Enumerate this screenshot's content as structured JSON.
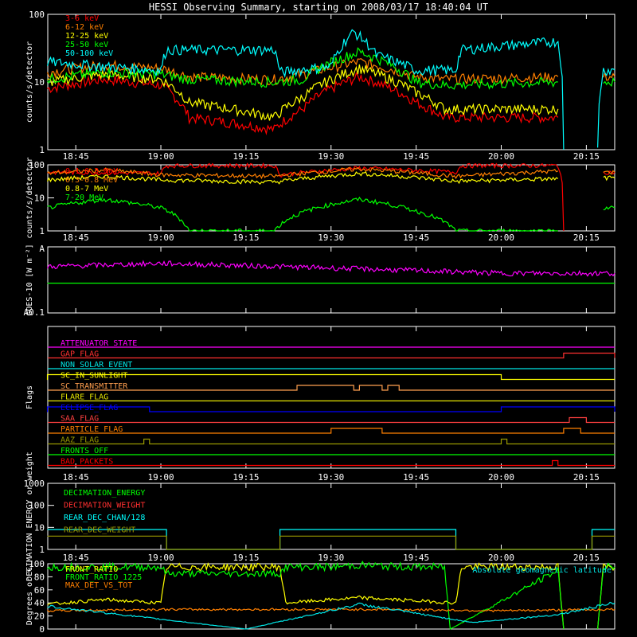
{
  "title": "HESSI Observing Summary, starting on 2008/03/17 18:40:04 UT",
  "time_axis": {
    "start": "18:40:04",
    "end": "20:20",
    "tick_labels": [
      "18:45",
      "19:00",
      "19:15",
      "19:30",
      "19:45",
      "20:00",
      "20:15"
    ]
  },
  "colors": {
    "red": "#ff0000",
    "orange": "#ff7f00",
    "yellow": "#ffff00",
    "green": "#00ff00",
    "cyan": "#00ffff",
    "magenta": "#ff00ff",
    "blue": "#0000ff",
    "olive": "#999900",
    "white": "#ffffff"
  },
  "chart_data": [
    {
      "type": "line",
      "panel": "countrate-low",
      "ylabel": "counts/s/detector",
      "ylim": [
        1,
        100
      ],
      "log_y": true,
      "y_tick_labels": [
        "1",
        "10",
        "100"
      ],
      "legend_placement": "top-left",
      "series": [
        {
          "name": "3-6 keV",
          "color": "#ff0000",
          "segments": [
            {
              "t": [
                "18:40",
                "18:50",
                "19:00",
                "19:05",
                "19:20",
                "19:25",
                "19:35",
                "19:45",
                "19:50",
                "20:10"
              ],
              "v": [
                8,
                11,
                9,
                3,
                2,
                4,
                12,
                5,
                3,
                3
              ]
            }
          ]
        },
        {
          "name": "6-12 keV",
          "color": "#ff7f00",
          "segments": [
            {
              "t": [
                "18:40",
                "18:50",
                "19:00",
                "19:05",
                "19:20",
                "19:25",
                "19:35",
                "19:45",
                "19:50",
                "20:10"
              ],
              "v": [
                14,
                18,
                16,
                12,
                11,
                13,
                20,
                12,
                11,
                12
              ],
              "end": "20:10"
            },
            {
              "t": [
                "20:18",
                "20:20"
              ],
              "v": [
                12,
                12
              ]
            }
          ]
        },
        {
          "name": "12-25 keV",
          "color": "#ffff00",
          "segments": [
            {
              "t": [
                "18:40",
                "18:50",
                "19:00",
                "19:05",
                "19:20",
                "19:25",
                "19:35",
                "19:45",
                "19:50",
                "20:10"
              ],
              "v": [
                10,
                13,
                11,
                5,
                3,
                6,
                16,
                7,
                4,
                4
              ]
            }
          ]
        },
        {
          "name": "25-50 keV",
          "color": "#00ff00",
          "segments": [
            {
              "t": [
                "18:40",
                "18:50",
                "19:00",
                "19:05",
                "19:20",
                "19:25",
                "19:35",
                "19:45",
                "19:50",
                "20:10"
              ],
              "v": [
                11,
                14,
                13,
                11,
                10,
                11,
                28,
                10,
                9,
                10
              ]
            },
            {
              "t": [
                "20:18",
                "20:20"
              ],
              "v": [
                10,
                10
              ]
            }
          ]
        },
        {
          "name": "50-100 keV",
          "color": "#00ffff",
          "segments": [
            {
              "t": [
                "18:40",
                "18:50",
                "19:00",
                "19:01",
                "19:20",
                "19:21",
                "19:30",
                "19:34",
                "19:38",
                "19:45",
                "19:52",
                "19:53",
                "20:10",
                "20:11"
              ],
              "v": [
                20,
                17,
                15,
                30,
                30,
                14,
                17,
                55,
                25,
                15,
                15,
                30,
                40,
                1
              ]
            },
            {
              "t": [
                "20:17",
                "20:18",
                "20:20"
              ],
              "v": [
                1,
                15,
                15
              ]
            }
          ]
        }
      ]
    },
    {
      "type": "line",
      "panel": "countrate-high",
      "ylabel": "counts/s/detector",
      "ylim": [
        1,
        100
      ],
      "log_y": true,
      "y_tick_labels": [
        "1",
        "10",
        "100"
      ],
      "legend_placement": "top-left",
      "series": [
        {
          "name": "0.1-0.3 MeV",
          "color": "#ff0000",
          "segments": [
            {
              "t": [
                "18:40",
                "19:00",
                "19:01",
                "19:20",
                "19:21",
                "19:35",
                "19:52",
                "19:53",
                "20:10",
                "20:11"
              ],
              "v": [
                60,
                55,
                95,
                95,
                50,
                80,
                60,
                95,
                95,
                1
              ]
            },
            {
              "t": [
                "20:18",
                "20:20"
              ],
              "v": [
                60,
                60
              ]
            }
          ]
        },
        {
          "name": "0.3-0.8 MeV",
          "color": "#ff7f00",
          "segments": [
            {
              "t": [
                "18:40",
                "18:50",
                "19:00",
                "19:20",
                "19:35",
                "19:52",
                "20:10"
              ],
              "v": [
                55,
                70,
                50,
                45,
                75,
                45,
                65
              ]
            },
            {
              "t": [
                "20:18",
                "20:20"
              ],
              "v": [
                60,
                60
              ]
            }
          ]
        },
        {
          "name": "0.8-7 MeV",
          "color": "#ffff00",
          "segments": [
            {
              "t": [
                "18:40",
                "18:50",
                "19:00",
                "19:20",
                "19:35",
                "19:52",
                "20:10"
              ],
              "v": [
                35,
                45,
                35,
                30,
                55,
                32,
                38
              ]
            },
            {
              "t": [
                "20:18",
                "20:20"
              ],
              "v": [
                40,
                40
              ]
            }
          ]
        },
        {
          "name": "7-20 MeV",
          "color": "#00ff00",
          "segments": [
            {
              "t": [
                "18:40",
                "18:50",
                "19:00",
                "19:05",
                "19:20",
                "19:35",
                "19:45",
                "19:52",
                "20:10"
              ],
              "v": [
                5,
                9,
                5,
                1,
                1,
                9,
                4,
                1,
                1
              ]
            },
            {
              "t": [
                "20:18",
                "20:20"
              ],
              "v": [
                5,
                5
              ]
            }
          ]
        }
      ]
    },
    {
      "type": "line",
      "panel": "goes",
      "ylabel": "GOES-10 [W m⁻²]",
      "log_y": true,
      "y_tick_labels": [
        "A",
        "A0.1"
      ],
      "series": [
        {
          "name": "",
          "color": "#ff00ff",
          "segments": [
            {
              "t": [
                "18:40",
                "19:00",
                "19:30",
                "20:00",
                "20:20"
              ],
              "v": [
                0.7,
                0.75,
                0.68,
                0.6,
                0.6
              ]
            }
          ]
        },
        {
          "name": "",
          "color": "#00ff00",
          "segments": [
            {
              "t": [
                "18:40",
                "20:20"
              ],
              "v": [
                0.45,
                0.45
              ]
            }
          ]
        }
      ]
    },
    {
      "type": "line",
      "panel": "flags",
      "ylabel": "Flags",
      "flags": [
        {
          "name": "ATTENUATOR_STATE",
          "color": "#ff00ff",
          "high": []
        },
        {
          "name": "GAP_FLAG",
          "color": "#ff3030",
          "high": [
            [
              "20:11",
              "20:20"
            ]
          ]
        },
        {
          "name": "NON_SOLAR_EVENT",
          "color": "#00e5e5",
          "high": []
        },
        {
          "name": "SC_IN_SUNLIGHT",
          "color": "#ffff00",
          "high": [
            [
              "18:40",
              "20:00"
            ]
          ]
        },
        {
          "name": "SC_TRANSMITTER",
          "color": "#ff9f4f",
          "high": [
            [
              "19:24",
              "19:34"
            ],
            [
              "19:35",
              "19:39"
            ],
            [
              "19:40",
              "19:42"
            ]
          ]
        },
        {
          "name": "FLARE_FLAG",
          "color": "#e5e500",
          "high": []
        },
        {
          "name": "ECLIPSE_FLAG",
          "color": "#0000ff",
          "high": [
            [
              "18:40",
              "18:58"
            ],
            [
              "20:00",
              "20:20"
            ]
          ]
        },
        {
          "name": "SAA_FLAG",
          "color": "#ff4040",
          "high": [
            [
              "20:12",
              "20:15"
            ]
          ]
        },
        {
          "name": "PARTICLE_FLAG",
          "color": "#ff7f00",
          "high": [
            [
              "19:30",
              "19:39"
            ],
            [
              "20:11",
              "20:14"
            ]
          ]
        },
        {
          "name": "AAZ_FLAG",
          "color": "#999900",
          "high": [
            [
              "18:57",
              "18:58"
            ],
            [
              "20:00",
              "20:01"
            ]
          ]
        },
        {
          "name": "FRONTS_OFF",
          "color": "#00ff00",
          "high": []
        },
        {
          "name": "BAD_PACKETS",
          "color": "#ff0000",
          "high": [
            [
              "20:09",
              "20:10"
            ]
          ]
        }
      ]
    },
    {
      "type": "line",
      "panel": "decimation",
      "ylabel": "DECIMATION ENERGY or weight",
      "ylim": [
        1,
        1000
      ],
      "log_y": true,
      "y_tick_labels": [
        "1",
        "10",
        "100",
        "1000"
      ],
      "series": [
        {
          "name": "DECIMATION_ENERGY",
          "color": "#00ff00",
          "segments": []
        },
        {
          "name": "DECIMATION_WEIGHT",
          "color": "#ff3030",
          "segments": []
        },
        {
          "name": "REAR_DEC_CHAN/128",
          "color": "#00ffff",
          "segments": [
            {
              "t": [
                "18:40",
                "19:01",
                "19:01",
                "19:21",
                "19:21",
                "19:52",
                "19:52",
                "20:16",
                "20:16",
                "20:20"
              ],
              "v": [
                8,
                8,
                1,
                1,
                8,
                8,
                1,
                1,
                8,
                8
              ]
            }
          ]
        },
        {
          "name": "REAR_DEC_WEIGHT",
          "color": "#999900",
          "segments": [
            {
              "t": [
                "18:40",
                "19:01",
                "19:01",
                "19:21",
                "19:21",
                "19:52",
                "19:52",
                "20:16",
                "20:16",
                "20:20"
              ],
              "v": [
                4,
                4,
                1,
                1,
                4,
                4,
                1,
                1,
                4,
                4
              ]
            }
          ]
        }
      ]
    },
    {
      "type": "line",
      "panel": "ratios",
      "ylabel": "Degrees or %",
      "ylim": [
        0,
        100
      ],
      "y_tick_labels": [
        "0",
        "20",
        "40",
        "60",
        "80",
        "100"
      ],
      "annotation": "Absolute geomagnetic latitude",
      "series": [
        {
          "name": "FRONT_RATIO",
          "color": "#ffff00",
          "segments": [
            {
              "t": [
                "18:40",
                "18:50",
                "19:00",
                "19:01",
                "19:21",
                "19:22",
                "19:35",
                "19:52",
                "19:53",
                "20:10",
                "20:11"
              ],
              "v": [
                38,
                45,
                40,
                95,
                95,
                40,
                48,
                40,
                95,
                95,
                0
              ]
            },
            {
              "t": [
                "20:17",
                "20:18",
                "20:20"
              ],
              "v": [
                0,
                95,
                95
              ]
            }
          ]
        },
        {
          "name": "FRONT_RATIO_1225",
          "color": "#00ff00",
          "segments": [
            {
              "t": [
                "18:40",
                "19:00",
                "19:01",
                "19:21",
                "19:22",
                "19:30",
                "19:35",
                "19:40",
                "19:45",
                "19:50",
                "19:51",
                "20:10",
                "20:11"
              ],
              "v": [
                95,
                95,
                85,
                85,
                95,
                95,
                98,
                96,
                95,
                95,
                0,
                90,
                0
              ]
            },
            {
              "t": [
                "20:17",
                "20:18",
                "20:20"
              ],
              "v": [
                0,
                95,
                95
              ]
            }
          ]
        },
        {
          "name": "MAX_DET_VS_TOT",
          "color": "#ff7f00",
          "segments": [
            {
              "t": [
                "18:40",
                "19:00",
                "19:20",
                "19:40",
                "20:00",
                "20:20"
              ],
              "v": [
                28,
                30,
                30,
                30,
                28,
                30
              ]
            }
          ]
        },
        {
          "name": "",
          "color": "#00e5e5",
          "segments": [
            {
              "t": [
                "18:40",
                "18:55",
                "19:15",
                "19:35",
                "19:55",
                "20:10",
                "20:20"
              ],
              "v": [
                35,
                20,
                0,
                38,
                10,
                22,
                40
              ]
            }
          ]
        }
      ]
    }
  ]
}
